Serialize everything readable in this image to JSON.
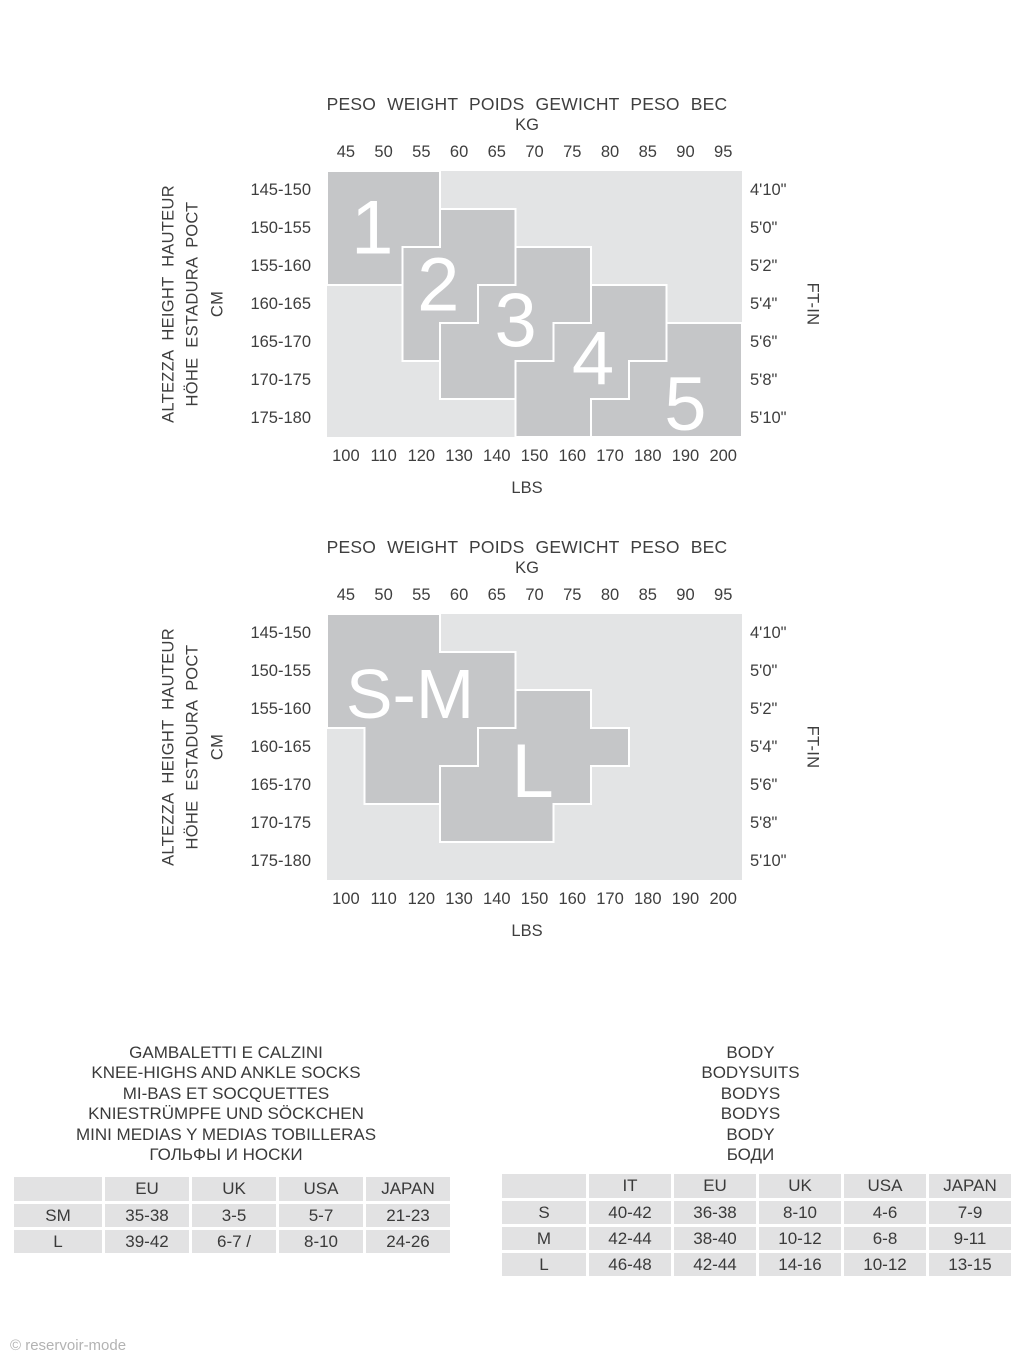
{
  "page": {
    "copyright": "© reservoir-mode"
  },
  "colors": {
    "background": "#ffffff",
    "plot_bg": "#e3e4e5",
    "region_fill": "#c5c6c8",
    "region_border": "#ffffff",
    "region_label": "#ffffff",
    "table_cell_bg": "#e2e2e3",
    "text": "#3e3e3e",
    "copyright_gray": "#b3b3b3"
  },
  "chart_data": [
    {
      "type": "size-region-grid",
      "title": "PESO WEIGHT POIDS GEWICHT PESO ВЕС",
      "kg_label": "KG",
      "lbs_label": "LBS",
      "right_axis_label": "FT-IN",
      "left_axis_lines": [
        "ALTEZZA HEIGHT HAUTEUR",
        "HÖHE ESTADURA РОСТ",
        "CM"
      ],
      "kg_ticks": [
        "45",
        "50",
        "55",
        "60",
        "65",
        "70",
        "75",
        "80",
        "85",
        "90",
        "95"
      ],
      "lbs_ticks": [
        "100",
        "110",
        "120",
        "130",
        "140",
        "150",
        "160",
        "170",
        "180",
        "190",
        "200"
      ],
      "cm_rows": [
        "145-150",
        "150-155",
        "155-160",
        "160-165",
        "165-170",
        "170-175",
        "175-180"
      ],
      "ftin_rows": [
        "4'10\"",
        "5'0\"",
        "5'2\"",
        "5'4\"",
        "5'6\"",
        "5'8\"",
        "5'10\""
      ],
      "grid": {
        "cols": 11,
        "rows": 7,
        "kg_range": [
          45,
          95
        ],
        "lbs_range": [
          100,
          200
        ],
        "cm_range": [
          145,
          180
        ]
      },
      "regions": [
        {
          "label": "1",
          "points": [
            [
              0,
              0
            ],
            [
              3,
              0
            ],
            [
              3,
              2
            ],
            [
              2,
              2
            ],
            [
              2,
              3
            ],
            [
              0,
              3
            ]
          ],
          "label_pos": [
            1.2,
            1.5
          ]
        },
        {
          "label": "2",
          "points": [
            [
              3,
              1
            ],
            [
              5,
              1
            ],
            [
              5,
              3
            ],
            [
              4,
              3
            ],
            [
              4,
              4
            ],
            [
              3,
              4
            ],
            [
              3,
              5
            ],
            [
              2,
              5
            ],
            [
              2,
              2
            ],
            [
              3,
              2
            ]
          ],
          "label_pos": [
            2.95,
            3.0
          ]
        },
        {
          "label": "3",
          "points": [
            [
              5,
              2
            ],
            [
              7,
              2
            ],
            [
              7,
              4
            ],
            [
              6,
              4
            ],
            [
              6,
              5
            ],
            [
              5,
              5
            ],
            [
              5,
              6
            ],
            [
              3,
              6
            ],
            [
              3,
              4
            ],
            [
              4,
              4
            ],
            [
              4,
              3
            ],
            [
              5,
              3
            ]
          ],
          "label_pos": [
            5.0,
            3.95
          ]
        },
        {
          "label": "4",
          "points": [
            [
              7,
              3
            ],
            [
              9,
              3
            ],
            [
              9,
              5
            ],
            [
              8,
              5
            ],
            [
              8,
              6
            ],
            [
              7,
              6
            ],
            [
              7,
              7
            ],
            [
              5,
              7
            ],
            [
              5,
              5
            ],
            [
              6,
              5
            ],
            [
              6,
              4
            ],
            [
              7,
              4
            ]
          ],
          "label_pos": [
            7.05,
            4.95
          ]
        },
        {
          "label": "5",
          "points": [
            [
              9,
              4
            ],
            [
              11,
              4
            ],
            [
              11,
              7
            ],
            [
              7,
              7
            ],
            [
              7,
              6
            ],
            [
              8,
              6
            ],
            [
              8,
              5
            ],
            [
              9,
              5
            ]
          ],
          "label_pos": [
            9.5,
            6.15
          ]
        }
      ]
    },
    {
      "type": "size-region-grid",
      "title": "PESO WEIGHT POIDS GEWICHT PESO ВЕС",
      "kg_label": "KG",
      "lbs_label": "LBS",
      "right_axis_label": "FT-IN",
      "left_axis_lines": [
        "ALTEZZA HEIGHT HAUTEUR",
        "HÖHE ESTADURA РОСТ",
        "CM"
      ],
      "kg_ticks": [
        "45",
        "50",
        "55",
        "60",
        "65",
        "70",
        "75",
        "80",
        "85",
        "90",
        "95"
      ],
      "lbs_ticks": [
        "100",
        "110",
        "120",
        "130",
        "140",
        "150",
        "160",
        "170",
        "180",
        "190",
        "200"
      ],
      "cm_rows": [
        "145-150",
        "150-155",
        "155-160",
        "160-165",
        "165-170",
        "170-175",
        "175-180"
      ],
      "ftin_rows": [
        "4'10\"",
        "5'0\"",
        "5'2\"",
        "5'4\"",
        "5'6\"",
        "5'8\"",
        "5'10\""
      ],
      "grid": {
        "cols": 11,
        "rows": 7,
        "kg_range": [
          45,
          95
        ],
        "lbs_range": [
          100,
          200
        ],
        "cm_range": [
          145,
          180
        ]
      },
      "regions": [
        {
          "label": "S-M",
          "points": [
            [
              0,
              0
            ],
            [
              3,
              0
            ],
            [
              3,
              1
            ],
            [
              5,
              1
            ],
            [
              5,
              3
            ],
            [
              4,
              3
            ],
            [
              4,
              4
            ],
            [
              3,
              4
            ],
            [
              3,
              5
            ],
            [
              1,
              5
            ],
            [
              1,
              3
            ],
            [
              0,
              3
            ]
          ],
          "label_pos": [
            2.2,
            2.1
          ]
        },
        {
          "label": "L",
          "points": [
            [
              5,
              2
            ],
            [
              7,
              2
            ],
            [
              7,
              3
            ],
            [
              8,
              3
            ],
            [
              8,
              4
            ],
            [
              7,
              4
            ],
            [
              7,
              5
            ],
            [
              6,
              5
            ],
            [
              6,
              6
            ],
            [
              3,
              6
            ],
            [
              3,
              4
            ],
            [
              4,
              4
            ],
            [
              4,
              3
            ],
            [
              5,
              3
            ]
          ],
          "label_pos": [
            5.45,
            4.15
          ]
        }
      ]
    },
    {
      "type": "table",
      "headings": [
        "GAMBALETTI E CALZINI",
        "KNEE-HIGHS AND ANKLE SOCKS",
        "MI-BAS ET SOCQUETTES",
        "KNIESTRÜMPFE UND SÖCKCHEN",
        "MINI MEDIAS Y MEDIAS TOBILLERAS",
        "ГОЛЬФЫ И НОСКИ"
      ],
      "columns": [
        "",
        "EU",
        "UK",
        "USA",
        "JAPAN"
      ],
      "rows": [
        [
          "SM",
          "35-38",
          "3-5",
          "5-7",
          "21-23"
        ],
        [
          "L",
          "39-42",
          "6-7 /",
          "8-10",
          "24-26"
        ]
      ]
    },
    {
      "type": "table",
      "headings": [
        "BODY",
        "BODYSUITS",
        "BODYS",
        "BODYS",
        "BODY",
        "БОДИ"
      ],
      "columns": [
        "",
        "IT",
        "EU",
        "UK",
        "USA",
        "JAPAN"
      ],
      "rows": [
        [
          "S",
          "40-42",
          "36-38",
          "8-10",
          "4-6",
          "7-9"
        ],
        [
          "M",
          "42-44",
          "38-40",
          "10-12",
          "6-8",
          "9-11"
        ],
        [
          "L",
          "46-48",
          "42-44",
          "14-16",
          "10-12",
          "13-15"
        ]
      ]
    }
  ]
}
